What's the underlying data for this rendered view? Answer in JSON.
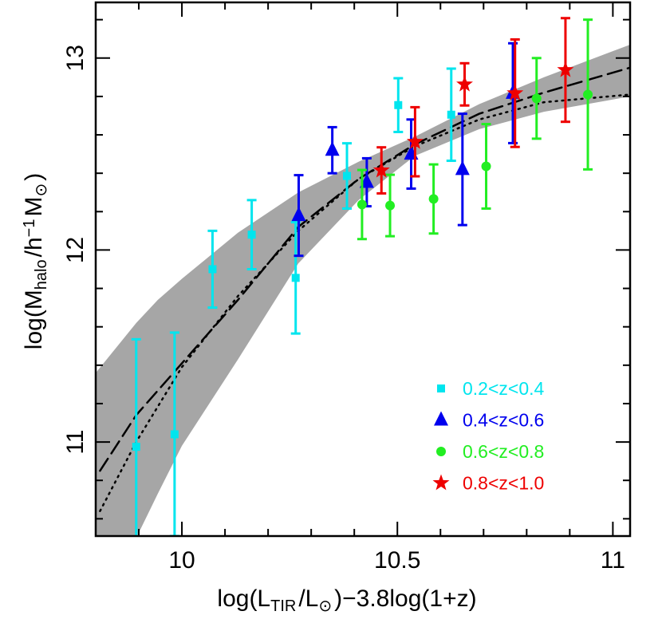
{
  "chart_data": {
    "type": "scatter",
    "x_label": [
      {
        "text": "log(L"
      },
      {
        "text": "TIR",
        "shift": "sub"
      },
      {
        "text": "/L"
      },
      {
        "text": "⊙",
        "shift": "sub"
      },
      {
        "text": ")−3.8log(1+z)"
      }
    ],
    "y_label": [
      {
        "text": "log(M"
      },
      {
        "text": "halo",
        "shift": "sub"
      },
      {
        "text": "/h"
      },
      {
        "text": "−1",
        "shift": "super"
      },
      {
        "text": "M"
      },
      {
        "text": "⊙",
        "shift": "sub"
      },
      {
        "text": ")"
      }
    ],
    "xlim": [
      9.8,
      11.04
    ],
    "ylim": [
      10.51,
      13.29
    ],
    "xticks": [
      10,
      10.5,
      11
    ],
    "yticks": [
      11,
      12,
      13
    ],
    "xticks_minor": [
      9.9,
      10.1,
      10.2,
      10.3,
      10.4,
      10.6,
      10.7,
      10.8,
      10.9
    ],
    "yticks_minor": [
      10.6,
      10.8,
      11.2,
      11.4,
      11.6,
      11.8,
      12.2,
      12.4,
      12.6,
      12.8,
      13.2
    ],
    "legend": "lower right",
    "band": {
      "color": "#a6a6a6",
      "x": [
        9.8,
        9.894,
        9.944,
        10,
        10.13,
        10.27,
        10.41,
        10.54,
        10.69,
        10.84,
        11.04
      ],
      "lower": [
        10.2,
        10.5,
        10.73,
        10.98,
        11.43,
        11.93,
        12.26,
        12.49,
        12.63,
        12.72,
        12.8
      ],
      "upper": [
        11.36,
        11.62,
        11.74,
        11.85,
        12.09,
        12.3,
        12.46,
        12.59,
        12.76,
        12.9,
        13.07
      ]
    },
    "lines": [
      {
        "dash": "dashed",
        "color": "#000000",
        "x": [
          9.81,
          9.894,
          10,
          10.13,
          10.27,
          10.41,
          10.54,
          10.69,
          10.84,
          11.04
        ],
        "y": [
          10.85,
          11.14,
          11.41,
          11.74,
          12.12,
          12.37,
          12.55,
          12.71,
          12.82,
          12.95
        ]
      },
      {
        "dash": "dotted",
        "color": "#000000",
        "x": [
          9.81,
          9.894,
          10,
          10.13,
          10.27,
          10.41,
          10.54,
          10.69,
          10.84,
          11.04
        ],
        "y": [
          10.64,
          11.0,
          11.39,
          11.76,
          12.1,
          12.37,
          12.54,
          12.68,
          12.77,
          12.81
        ]
      }
    ],
    "series": [
      {
        "name": "0.2<z<0.4",
        "color": "#00e5ee",
        "marker": "square",
        "x": [
          9.894,
          9.983,
          10.071,
          10.162,
          10.264,
          10.383,
          10.502,
          10.625
        ],
        "values": [
          10.975,
          11.04,
          11.9,
          12.08,
          11.855,
          12.386,
          12.755,
          12.705
        ],
        "errors": [
          0.56,
          0.53,
          0.2,
          0.18,
          0.29,
          0.17,
          0.14,
          0.24
        ]
      },
      {
        "name": "0.4<z<0.6",
        "color": "#0000ee",
        "marker": "triangle",
        "x": [
          10.271,
          10.349,
          10.429,
          10.532,
          10.651,
          10.768
        ],
        "values": [
          12.18,
          12.52,
          12.353,
          12.5,
          12.42,
          12.817
        ],
        "errors": [
          0.21,
          0.12,
          0.125,
          0.18,
          0.29,
          0.26
        ]
      },
      {
        "name": "0.6<z<0.8",
        "color": "#22ee22",
        "marker": "circle",
        "x": [
          10.418,
          10.483,
          10.584,
          10.706,
          10.823,
          10.942
        ],
        "values": [
          12.237,
          12.232,
          12.266,
          12.436,
          12.79,
          12.81
        ],
        "errors": [
          0.18,
          0.16,
          0.18,
          0.22,
          0.21,
          0.39
        ]
      },
      {
        "name": "0.8<z<1.0",
        "color": "#ee0000",
        "marker": "star",
        "x": [
          10.463,
          10.541,
          10.656,
          10.773,
          10.89
        ],
        "values": [
          12.415,
          12.564,
          12.863,
          12.817,
          12.938
        ],
        "errors": [
          0.12,
          0.18,
          0.11,
          0.28,
          0.27
        ]
      }
    ]
  }
}
